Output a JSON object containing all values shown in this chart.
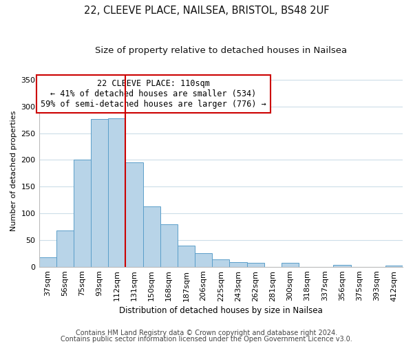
{
  "title_line1": "22, CLEEVE PLACE, NAILSEA, BRISTOL, BS48 2UF",
  "title_line2": "Size of property relative to detached houses in Nailsea",
  "xlabel": "Distribution of detached houses by size in Nailsea",
  "ylabel": "Number of detached properties",
  "categories": [
    "37sqm",
    "56sqm",
    "75sqm",
    "93sqm",
    "112sqm",
    "131sqm",
    "150sqm",
    "168sqm",
    "187sqm",
    "206sqm",
    "225sqm",
    "243sqm",
    "262sqm",
    "281sqm",
    "300sqm",
    "318sqm",
    "337sqm",
    "356sqm",
    "375sqm",
    "393sqm",
    "412sqm"
  ],
  "values": [
    18,
    68,
    200,
    277,
    278,
    195,
    113,
    79,
    40,
    25,
    14,
    8,
    7,
    0,
    7,
    0,
    0,
    3,
    0,
    0,
    2
  ],
  "bar_color": "#b8d4e8",
  "bar_edge_color": "#5a9ec9",
  "vline_x_index": 4,
  "vline_color": "#cc0000",
  "annotation_line1": "22 CLEEVE PLACE: 110sqm",
  "annotation_line2": "← 41% of detached houses are smaller (534)",
  "annotation_line3": "59% of semi-detached houses are larger (776) →",
  "annotation_box_facecolor": "#ffffff",
  "annotation_box_edgecolor": "#cc0000",
  "ylim": [
    0,
    360
  ],
  "yticks": [
    0,
    50,
    100,
    150,
    200,
    250,
    300,
    350
  ],
  "footer_line1": "Contains HM Land Registry data © Crown copyright and database right 2024.",
  "footer_line2": "Contains public sector information licensed under the Open Government Licence v3.0.",
  "background_color": "#ffffff",
  "grid_color": "#ccdde8",
  "title_fontsize": 10.5,
  "subtitle_fontsize": 9.5,
  "annotation_fontsize": 8.5,
  "footer_fontsize": 7,
  "axis_fontsize": 8,
  "ylabel_fontsize": 8
}
